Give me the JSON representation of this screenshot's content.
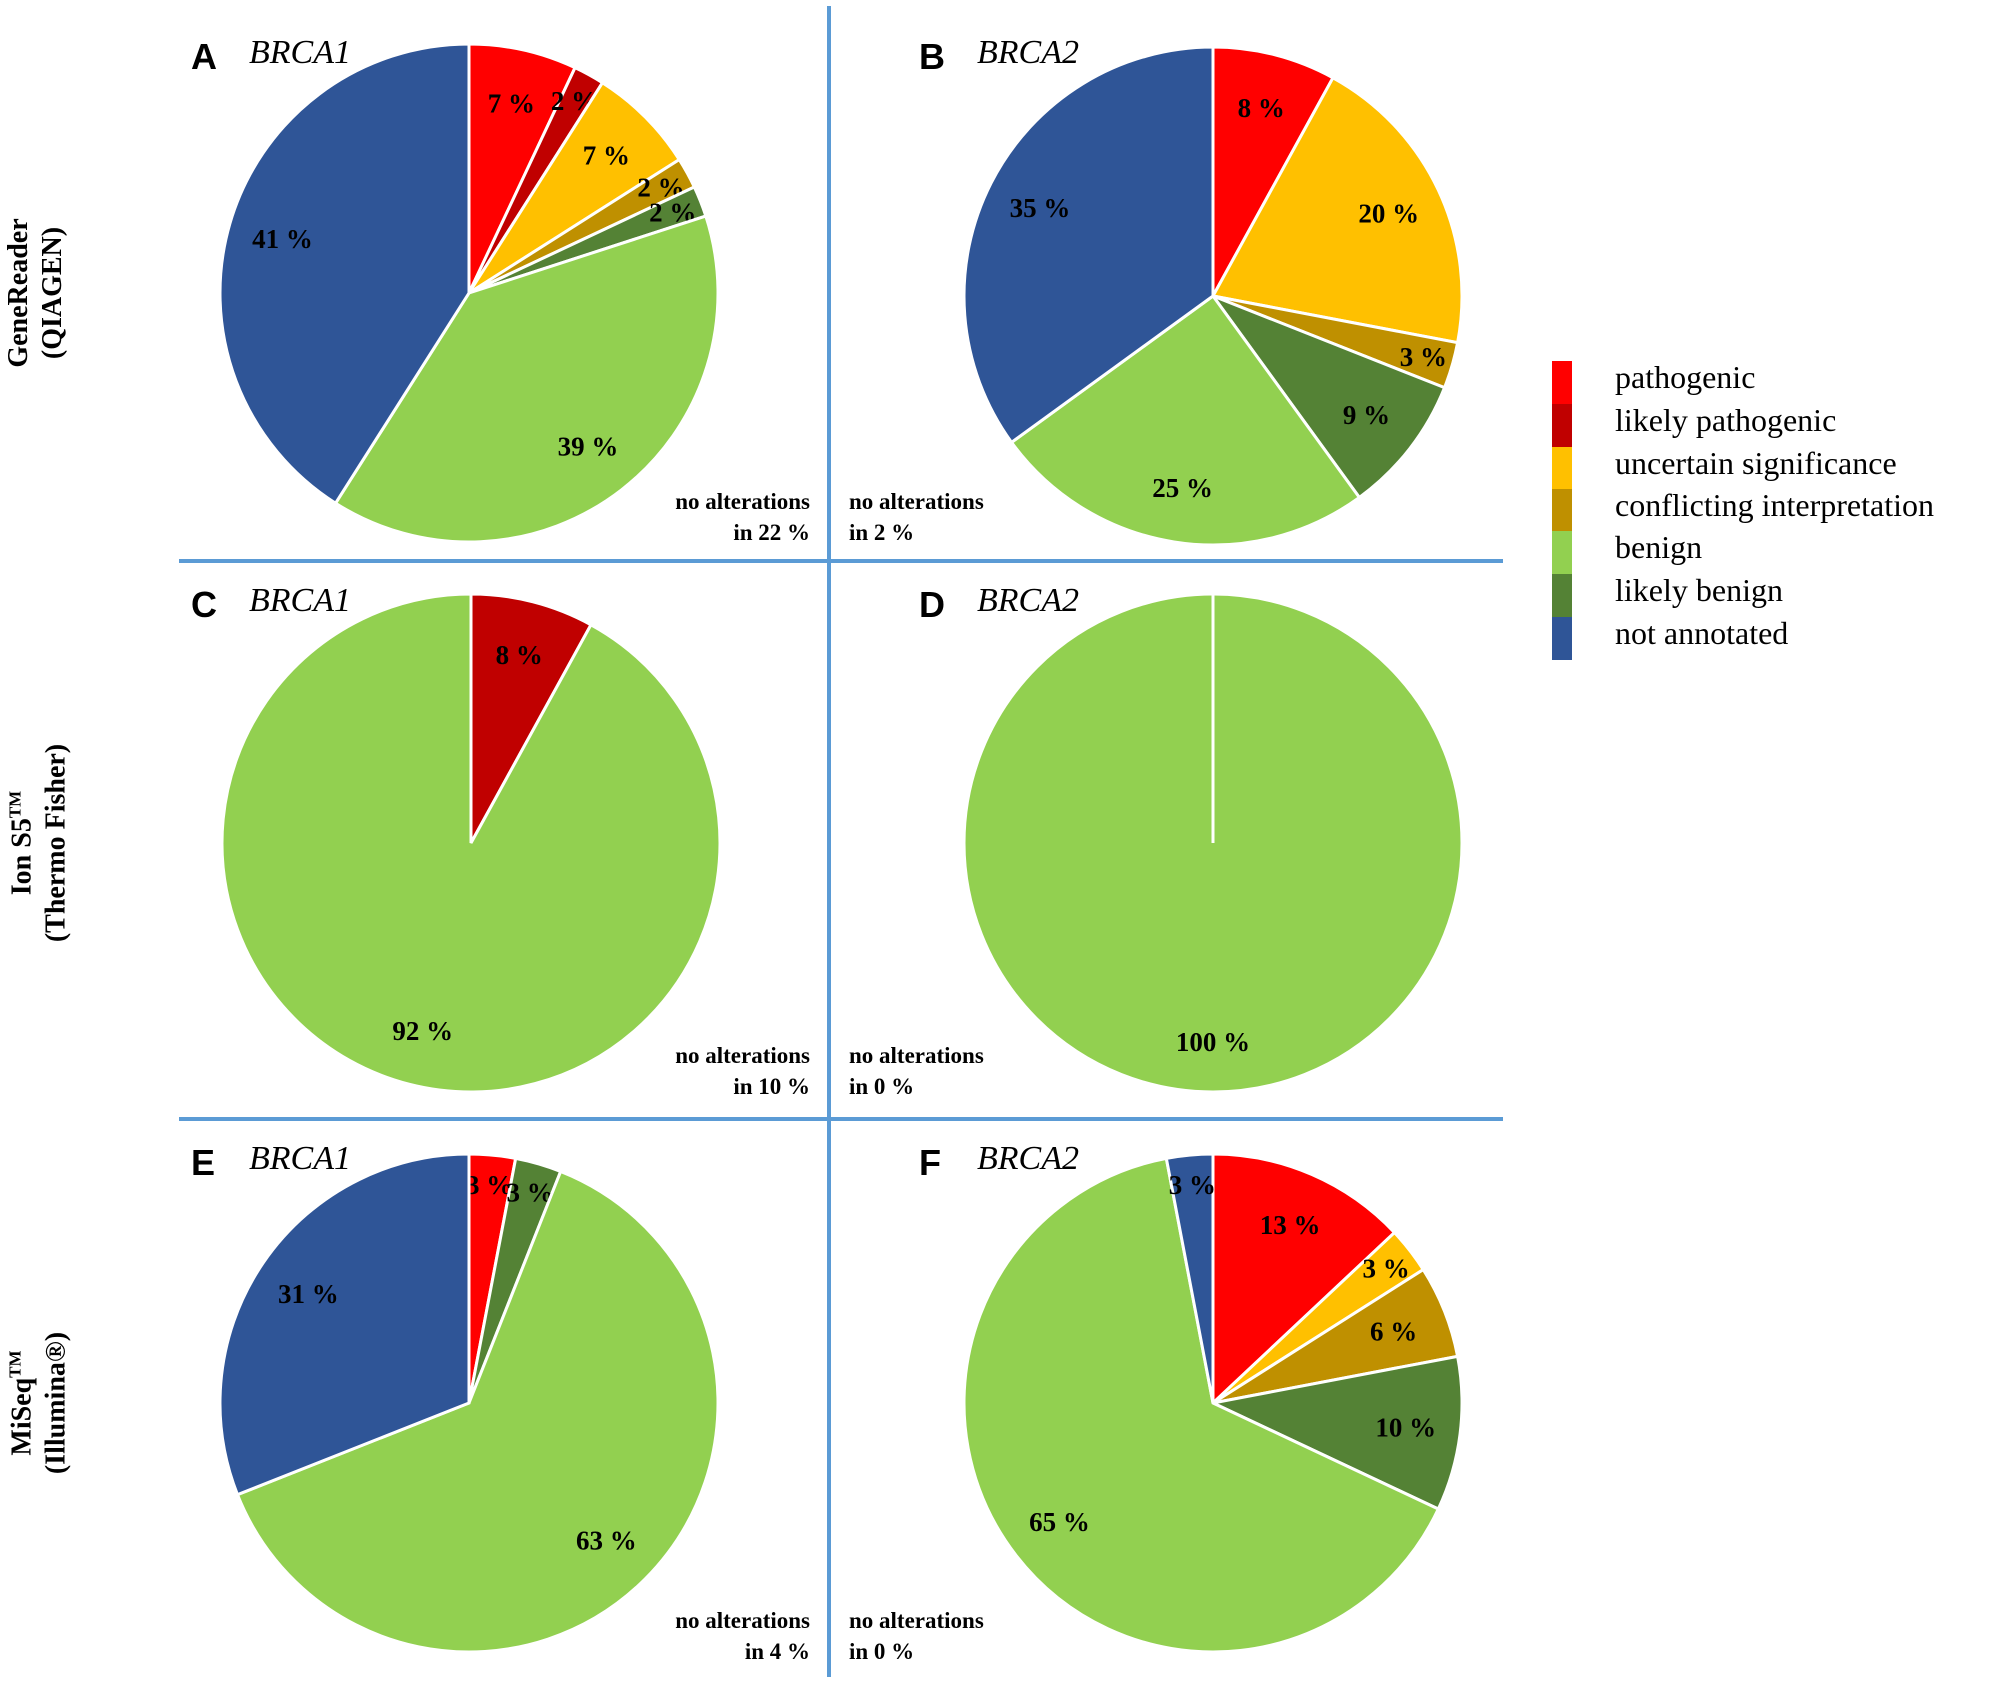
{
  "chart_data": [
    {
      "type": "pie",
      "panel": "A",
      "gene": "BRCA1",
      "platform": "GeneReader (QIAGEN)",
      "no_alterations": [
        "no alterations",
        "in 22 %"
      ],
      "slices": [
        {
          "category": "pathogenic",
          "value": 7
        },
        {
          "category": "likely pathogenic",
          "value": 2
        },
        {
          "category": "uncertain significance",
          "value": 7
        },
        {
          "category": "conflicting interpretation",
          "value": 2
        },
        {
          "category": "likely benign",
          "value": 2
        },
        {
          "category": "benign",
          "value": 39
        },
        {
          "category": "not annotated",
          "value": 41
        }
      ]
    },
    {
      "type": "pie",
      "panel": "B",
      "gene": "BRCA2",
      "platform": "GeneReader (QIAGEN)",
      "no_alterations": [
        "no alterations",
        "in 2 %"
      ],
      "slices": [
        {
          "category": "pathogenic",
          "value": 8
        },
        {
          "category": "uncertain significance",
          "value": 20
        },
        {
          "category": "conflicting interpretation",
          "value": 3
        },
        {
          "category": "likely benign",
          "value": 9
        },
        {
          "category": "benign",
          "value": 25
        },
        {
          "category": "not annotated",
          "value": 35
        }
      ]
    },
    {
      "type": "pie",
      "panel": "C",
      "gene": "BRCA1",
      "platform": "Ion S5TM (Thermo Fisher)",
      "no_alterations": [
        "no alterations",
        "in 10 %"
      ],
      "slices": [
        {
          "category": "likely pathogenic",
          "value": 8
        },
        {
          "category": "benign",
          "value": 92
        }
      ]
    },
    {
      "type": "pie",
      "panel": "D",
      "gene": "BRCA2",
      "platform": "Ion S5TM (Thermo Fisher)",
      "no_alterations": [
        "no alterations",
        "in 0 %"
      ],
      "slices": [
        {
          "category": "benign",
          "value": 100
        }
      ]
    },
    {
      "type": "pie",
      "panel": "E",
      "gene": "BRCA1",
      "platform": "MiSeqTM (Illumina®)",
      "no_alterations": [
        "no alterations",
        "in 4 %"
      ],
      "slices": [
        {
          "category": "pathogenic",
          "value": 3
        },
        {
          "category": "likely benign",
          "value": 3
        },
        {
          "category": "benign",
          "value": 63
        },
        {
          "category": "not annotated",
          "value": 31
        }
      ]
    },
    {
      "type": "pie",
      "panel": "F",
      "gene": "BRCA2",
      "platform": "MiSeqTM (Illumina®)",
      "no_alterations": [
        "no alterations",
        "in 0 %"
      ],
      "slices": [
        {
          "category": "pathogenic",
          "value": 13
        },
        {
          "category": "uncertain significance",
          "value": 3
        },
        {
          "category": "conflicting interpretation",
          "value": 6
        },
        {
          "category": "likely benign",
          "value": 10
        },
        {
          "category": "benign",
          "value": 65
        },
        {
          "category": "not annotated",
          "value": 3
        }
      ]
    }
  ],
  "rows": [
    {
      "line1": "GeneReader",
      "line2": "(QIAGEN)"
    },
    {
      "line1": "Ion S5",
      "sup": "TM",
      "line2": "(Thermo Fisher)"
    },
    {
      "line1": "MiSeq",
      "sup": "TM",
      "line2": "(Illumina®)"
    }
  ],
  "legend": [
    {
      "label": "pathogenic",
      "color": "#FF0000"
    },
    {
      "label": "likely pathogenic",
      "color": "#C00000"
    },
    {
      "label": "uncertain significance",
      "color": "#FFC000"
    },
    {
      "label": "conflicting interpretation",
      "color": "#BF9000"
    },
    {
      "label": "benign",
      "color": "#92D050"
    },
    {
      "label": "likely benign",
      "color": "#548235"
    },
    {
      "label": "not annotated",
      "color": "#2F5597"
    }
  ],
  "divider_color": "#5B9BD5"
}
